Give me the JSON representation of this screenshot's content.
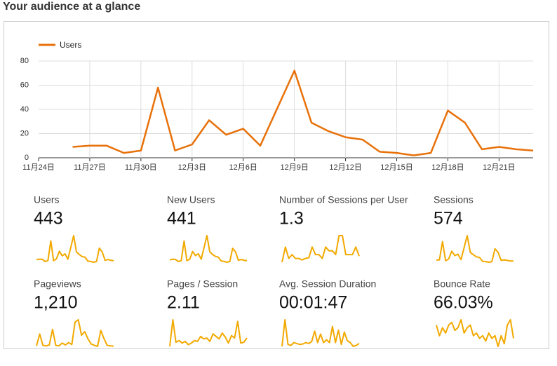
{
  "header": {
    "title": "Your audience at a glance"
  },
  "chart_data": {
    "type": "line",
    "categories": [
      "11月24日",
      null,
      null,
      "11月27日",
      null,
      null,
      "11月30日",
      null,
      null,
      "12月3日",
      null,
      null,
      "12月6日",
      null,
      null,
      "12月9日",
      null,
      null,
      "12月12日",
      null,
      null,
      "12月15日",
      null,
      null,
      "12月18日",
      null,
      null,
      "12月21日",
      null,
      null
    ],
    "series": [
      {
        "name": "Users",
        "color": "#e8710a",
        "values": [
          null,
          null,
          9,
          10,
          10,
          4,
          6,
          58,
          6,
          11,
          31,
          19,
          24,
          10,
          41,
          72,
          29,
          22,
          17,
          15,
          5,
          4,
          2,
          4,
          39,
          29,
          7,
          9,
          7,
          6
        ]
      }
    ],
    "ylim": [
      0,
      80
    ],
    "yticks": [
      0,
      20,
      40,
      60,
      80
    ],
    "grid": true,
    "legend": "top-left"
  },
  "metrics": [
    {
      "name": "Users",
      "value": "443",
      "color": "#f2a900",
      "sparkline": [
        9,
        10,
        10,
        4,
        6,
        58,
        6,
        11,
        31,
        19,
        24,
        10,
        41,
        72,
        29,
        22,
        17,
        15,
        5,
        4,
        2,
        4,
        39,
        29,
        7,
        9,
        7,
        6
      ]
    },
    {
      "name": "New Users",
      "value": "441",
      "color": "#f2a900",
      "sparkline": [
        8,
        10,
        9,
        4,
        6,
        57,
        6,
        10,
        30,
        19,
        24,
        10,
        40,
        71,
        29,
        22,
        17,
        15,
        5,
        4,
        2,
        4,
        38,
        29,
        7,
        9,
        7,
        6
      ]
    },
    {
      "name": "Number of Sessions per User",
      "value": "1.3",
      "color": "#f2a900",
      "sparkline": [
        1.3,
        1.5,
        1.35,
        1.4,
        1.35,
        1.35,
        1.33,
        1.35,
        1.36,
        1.5,
        1.4,
        1.4,
        1.35,
        1.5,
        1.45,
        1.45,
        1.4,
        1.65,
        1.65,
        1.4,
        1.4,
        1.4,
        1.5,
        1.38
      ]
    },
    {
      "name": "Sessions",
      "value": "574",
      "color": "#f2a900",
      "sparkline": [
        10,
        11,
        72,
        8,
        14,
        40,
        25,
        30,
        12,
        52,
        92,
        36,
        28,
        21,
        19,
        6,
        5,
        3,
        5,
        48,
        36,
        9,
        11,
        9,
        7,
        7
      ]
    },
    {
      "name": "Pageviews",
      "value": "1,210",
      "color": "#f2a900",
      "sparkline": [
        10,
        60,
        12,
        10,
        14,
        80,
        12,
        10,
        22,
        14,
        24,
        16,
        110,
        120,
        55,
        70,
        40,
        18,
        12,
        8,
        75,
        40,
        12,
        10,
        9
      ]
    },
    {
      "name": "Pages / Session",
      "value": "2.11",
      "color": "#f2a900",
      "sparkline": [
        1.6,
        4.8,
        2.1,
        2.3,
        2.0,
        2.2,
        1.8,
        2.0,
        2.3,
        2.2,
        2.8,
        2.5,
        2.6,
        2.2,
        3.1,
        2.8,
        2.5,
        3.2,
        2.7,
        2.0,
        2.9,
        2.6,
        4.6,
        2.0,
        2.1,
        2.6
      ]
    },
    {
      "name": "Avg. Session Duration",
      "value": "00:01:47",
      "color": "#f2a900",
      "sparkline": [
        20,
        300,
        40,
        30,
        60,
        50,
        40,
        45,
        60,
        50,
        70,
        180,
        60,
        150,
        60,
        90,
        60,
        230,
        60,
        190,
        40,
        170,
        80,
        60,
        20,
        30,
        50
      ]
    },
    {
      "name": "Bounce Rate",
      "value": "66.03%",
      "color": "#f2a900",
      "sparkline": [
        70,
        62,
        68,
        64,
        70,
        72,
        66,
        68,
        74,
        64,
        68,
        70,
        62,
        64,
        60,
        62,
        58,
        64,
        60,
        62,
        54,
        62,
        56,
        70,
        74,
        60
      ]
    }
  ]
}
